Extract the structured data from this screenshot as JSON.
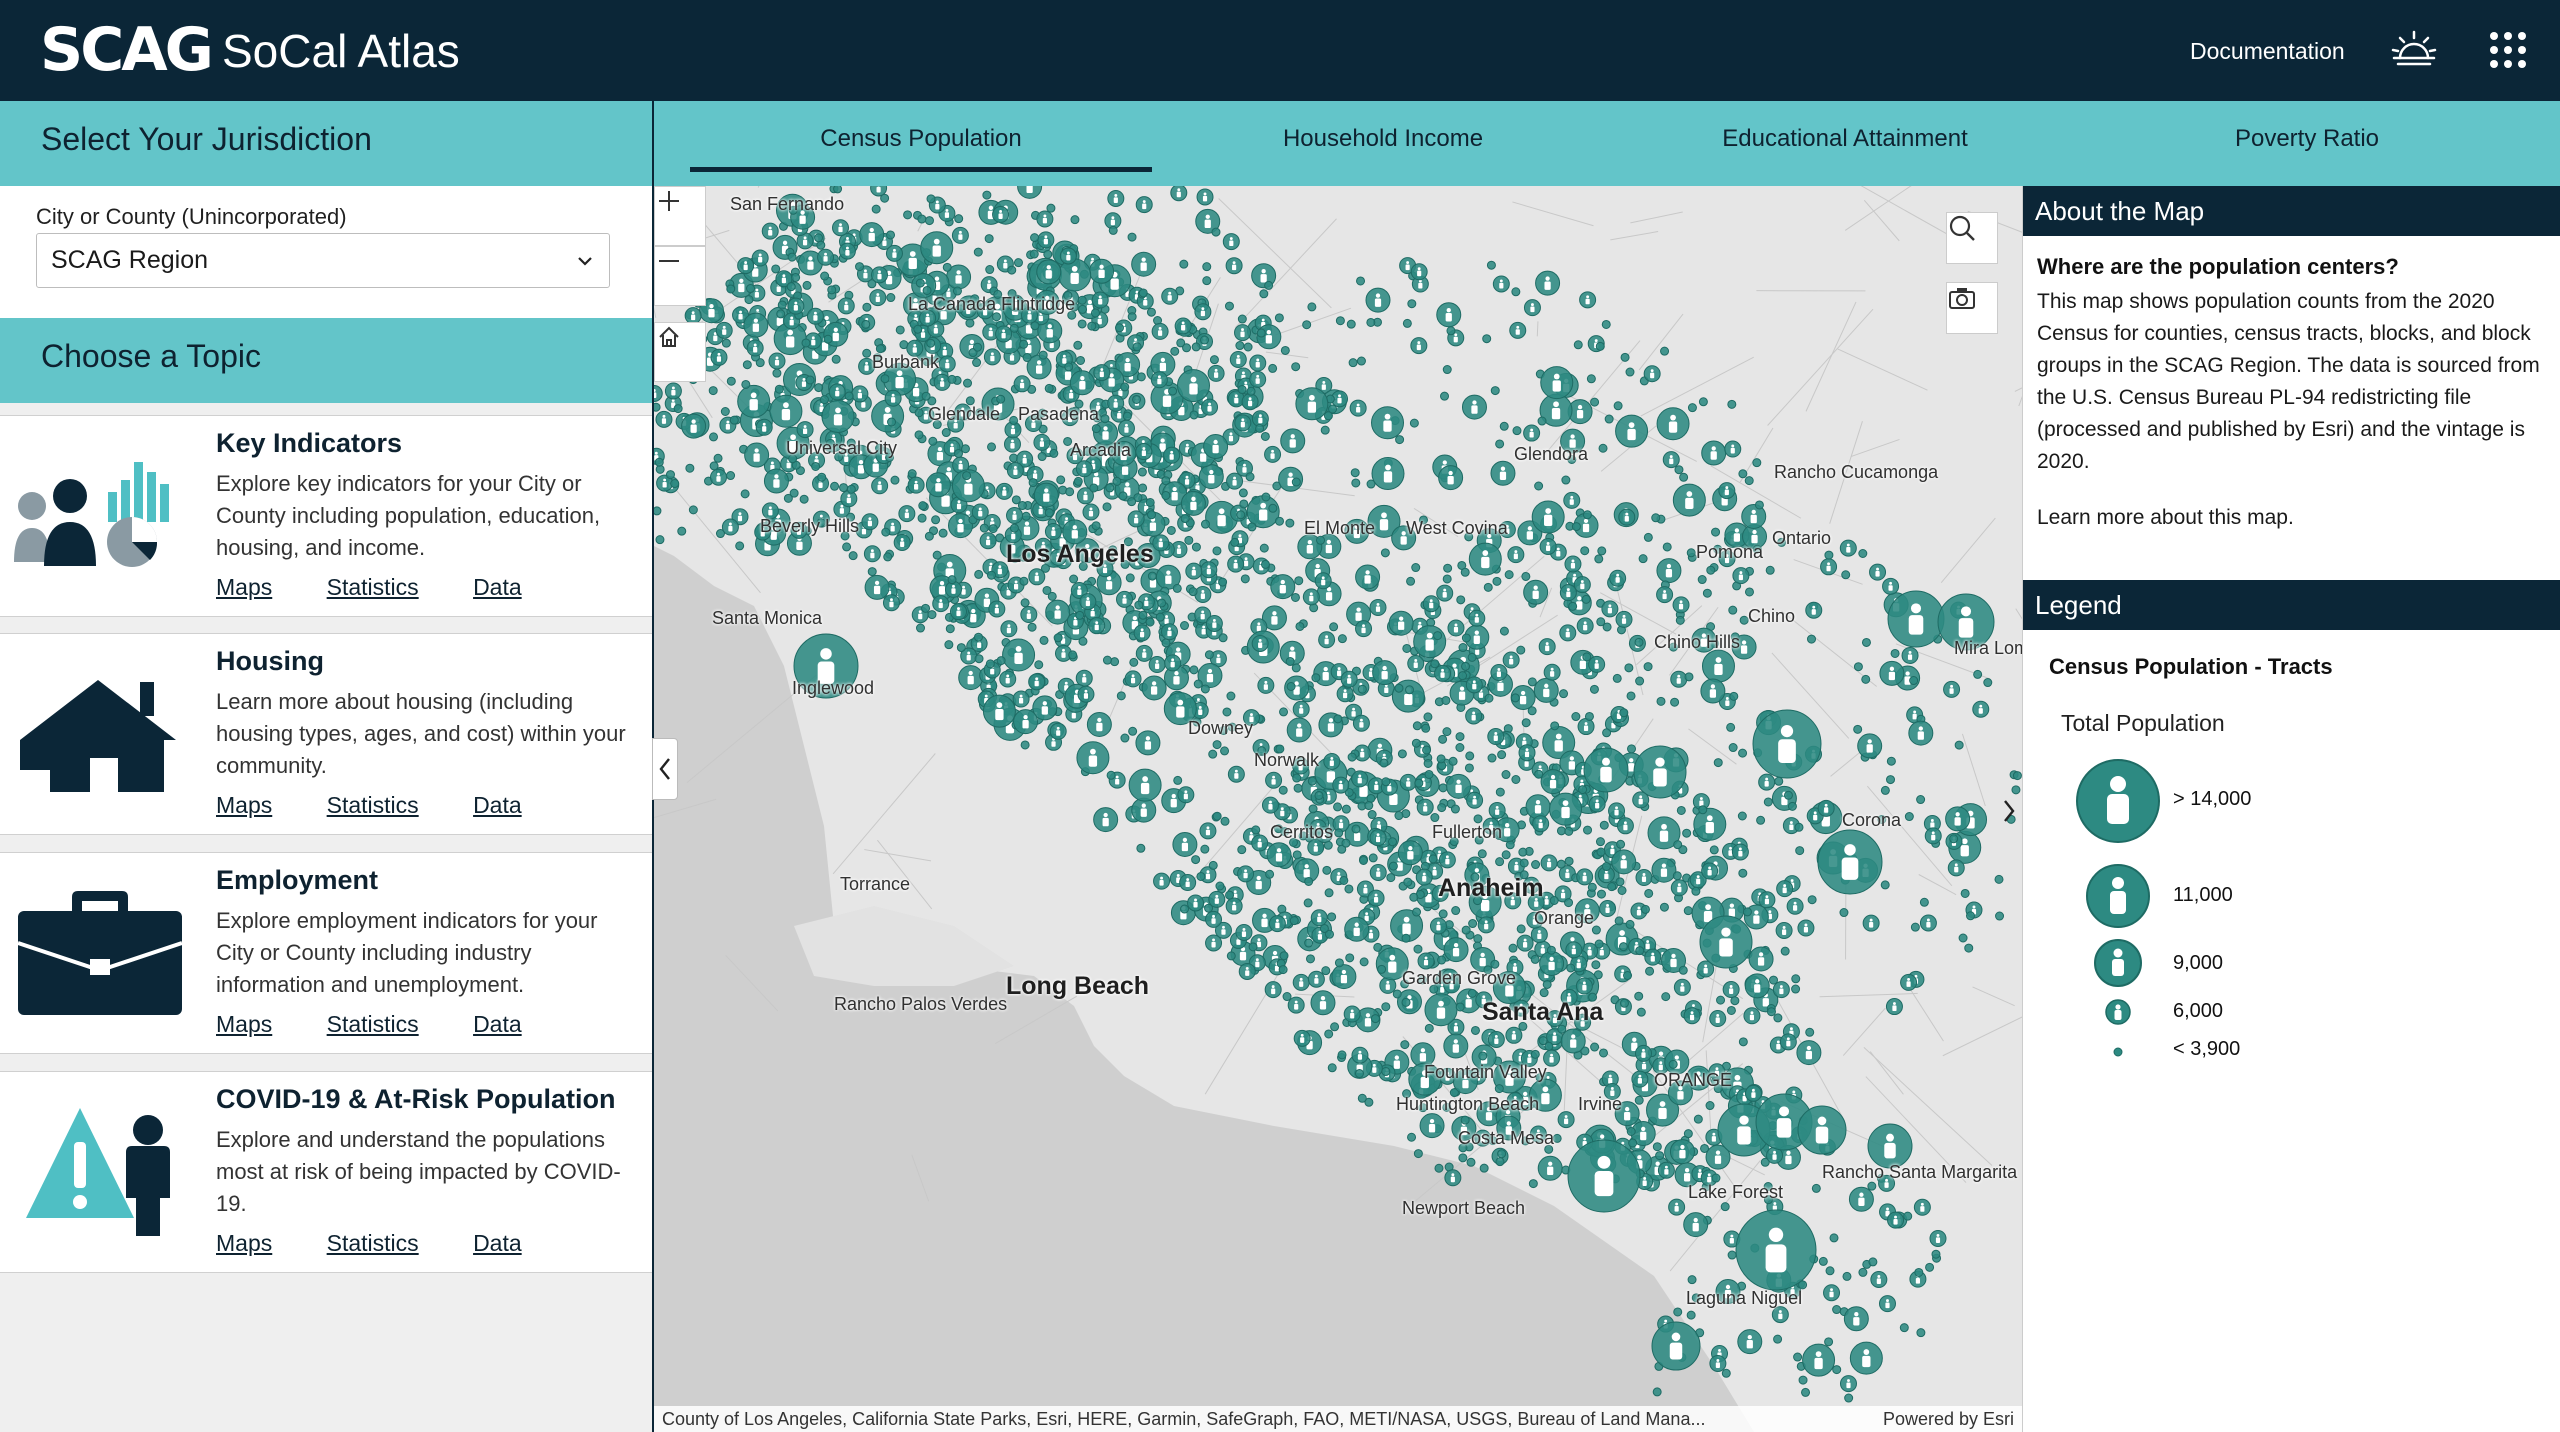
{
  "header": {
    "logo": "SCAG",
    "title": "SoCal Atlas",
    "documentation_label": "Documentation",
    "icons": [
      "sunrise-icon",
      "apps-grid-icon"
    ]
  },
  "jurisdiction": {
    "heading": "Select Your Jurisdiction",
    "field_label": "City or County (Unincorporated)",
    "selected": "SCAG Region"
  },
  "topics": {
    "heading": "Choose a Topic",
    "items": [
      {
        "title": "Key Indicators",
        "description": "Explore key indicators for your City or County including population, education, housing, and income.",
        "links": [
          "Maps",
          "Statistics",
          "Data"
        ]
      },
      {
        "title": "Housing",
        "description": "Learn more about housing (including housing types, ages, and cost) within your community.",
        "links": [
          "Maps",
          "Statistics",
          "Data"
        ]
      },
      {
        "title": "Employment",
        "description": "Explore employment indicators for your City or County including industry information and unemployment.",
        "links": [
          "Maps",
          "Statistics",
          "Data"
        ]
      },
      {
        "title": "COVID-19 & At-Risk Population",
        "description": "Explore and understand the populations most at risk of being impacted by COVID-19.",
        "links": [
          "Maps",
          "Statistics",
          "Data"
        ]
      }
    ]
  },
  "tabs": [
    {
      "label": "Census Population",
      "active": true
    },
    {
      "label": "Household Income",
      "active": false
    },
    {
      "label": "Educational Attainment",
      "active": false
    },
    {
      "label": "Poverty Ratio",
      "active": false
    }
  ],
  "map": {
    "labels": [
      {
        "text": "San Fernando",
        "big": false
      },
      {
        "text": "La Canada Flintridge",
        "big": false
      },
      {
        "text": "Burbank",
        "big": false
      },
      {
        "text": "Glendale",
        "big": false
      },
      {
        "text": "Pasadena",
        "big": false
      },
      {
        "text": "Universal City",
        "big": false
      },
      {
        "text": "Arcadia",
        "big": false
      },
      {
        "text": "Glendora",
        "big": false
      },
      {
        "text": "Beverly Hills",
        "big": false
      },
      {
        "text": "Los Angeles",
        "big": true
      },
      {
        "text": "El Monte",
        "big": false
      },
      {
        "text": "West Covina",
        "big": false
      },
      {
        "text": "Rancho Cucamonga",
        "big": false
      },
      {
        "text": "Ontario",
        "big": false
      },
      {
        "text": "Pomona",
        "big": false
      },
      {
        "text": "Santa Monica",
        "big": false
      },
      {
        "text": "Chino Hills",
        "big": false
      },
      {
        "text": "Chino",
        "big": false
      },
      {
        "text": "Mira Lom",
        "big": false
      },
      {
        "text": "Inglewood",
        "big": false
      },
      {
        "text": "Downey",
        "big": false
      },
      {
        "text": "Norwalk",
        "big": false
      },
      {
        "text": "Cerritos",
        "big": false
      },
      {
        "text": "Fullerton",
        "big": false
      },
      {
        "text": "Corona",
        "big": false
      },
      {
        "text": "Torrance",
        "big": false
      },
      {
        "text": "Anaheim",
        "big": true
      },
      {
        "text": "Orange",
        "big": false
      },
      {
        "text": "Garden Grove",
        "big": false
      },
      {
        "text": "Long Beach",
        "big": true
      },
      {
        "text": "Rancho Palos Verdes",
        "big": false
      },
      {
        "text": "Santa Ana",
        "big": true
      },
      {
        "text": "ORANGE",
        "big": false
      },
      {
        "text": "Fountain Valley",
        "big": false
      },
      {
        "text": "Huntington Beach",
        "big": false
      },
      {
        "text": "Irvine",
        "big": false
      },
      {
        "text": "Costa Mesa",
        "big": false
      },
      {
        "text": "Lake Forest",
        "big": false
      },
      {
        "text": "Rancho Santa Margarita",
        "big": false
      },
      {
        "text": "Newport Beach",
        "big": false
      },
      {
        "text": "Laguna Niguel",
        "big": false
      }
    ],
    "attribution": "County of Los Angeles, California State Parks, Esri, HERE, Garmin, SafeGraph, FAO, METI/NASA, USGS, Bureau of Land Mana...",
    "powered_by": "Powered by Esri",
    "accent_color": "#2d8a82",
    "controls": [
      "zoom-in-icon",
      "zoom-out-icon",
      "home-icon",
      "search-icon",
      "camera-icon"
    ]
  },
  "about": {
    "heading": "About the Map",
    "question": "Where are the population centers?",
    "text": "This map shows population counts from the 2020 Census for counties, census tracts, blocks, and block groups in the SCAG Region.  The data is sourced from the U.S. Census Bureau PL-94 redistricting file (processed and published by Esri) and the vintage is 2020.",
    "link": "Learn more about this map."
  },
  "legend": {
    "heading": "Legend",
    "layer": "Census Population - Tracts",
    "field": "Total Population",
    "items": [
      {
        "label": "> 14,000"
      },
      {
        "label": "11,000"
      },
      {
        "label": "9,000"
      },
      {
        "label": "6,000"
      },
      {
        "label": "< 3,900"
      }
    ]
  },
  "colors": {
    "header_bg": "#0b2637",
    "teal_bar": "#63c5c9",
    "symbol": "#2d8a82"
  }
}
